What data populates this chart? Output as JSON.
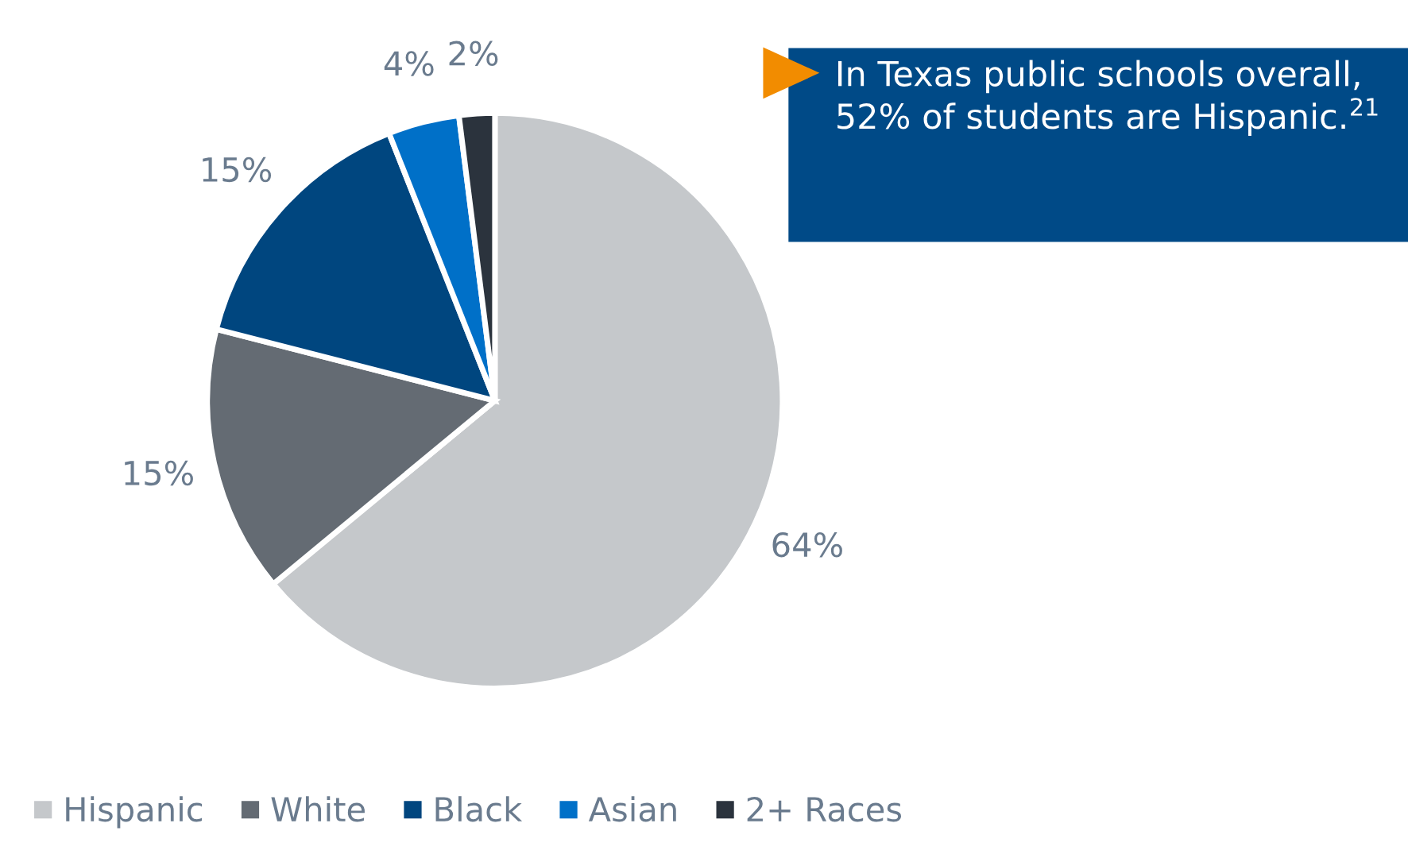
{
  "chart_data": {
    "type": "pie",
    "categories": [
      "Hispanic",
      "White",
      "Black",
      "Asian",
      "2+ Races"
    ],
    "values": [
      64,
      15,
      15,
      4,
      2
    ],
    "colors": [
      "#c5c8cb",
      "#646b73",
      "#00467f",
      "#0070c8",
      "#2b333d"
    ],
    "value_labels": [
      "64%",
      "15%",
      "15%",
      "4%",
      "2%"
    ],
    "annotations": [
      "In Texas public schools overall, 52% of students are Hispanic.$^{21}$"
    ],
    "legend": "bottom left"
  }
}
